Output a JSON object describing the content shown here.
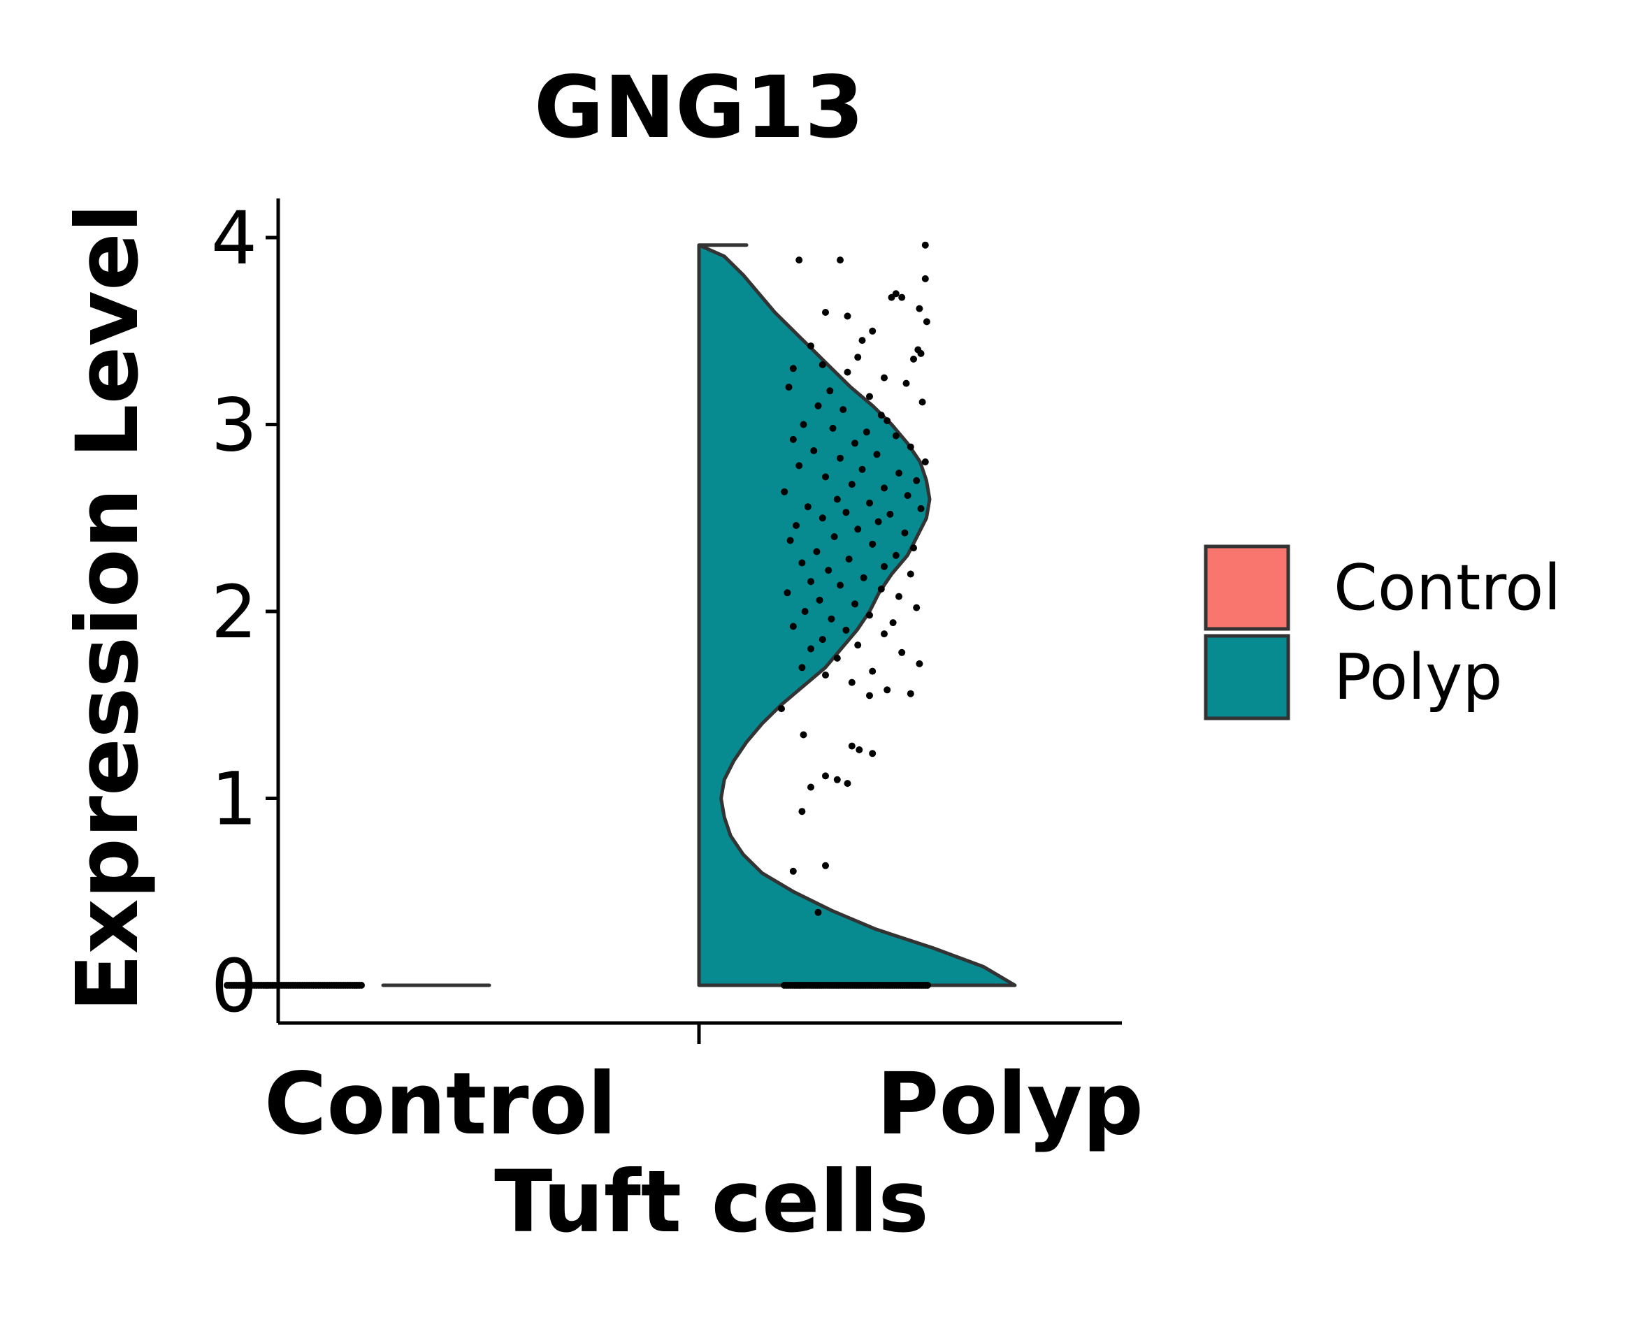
{
  "chart_data": {
    "type": "violin",
    "title": "GNG13",
    "xlabel": "Tuft cells",
    "ylabel": "Expression Level",
    "categories": [
      "Control",
      "Polyp"
    ],
    "yticks": [
      0,
      1,
      2,
      3,
      4
    ],
    "ylim": [
      -0.2,
      4.2
    ],
    "grid": false,
    "legend": {
      "position": "right",
      "entries": [
        {
          "label": "Control",
          "color": "#F8766D"
        },
        {
          "label": "Polyp",
          "color": "#088A91"
        }
      ]
    },
    "series": [
      {
        "group": "Control",
        "color": "#F8766D",
        "max_expression": 0,
        "zero_points": 60,
        "density_profile": []
      },
      {
        "group": "Polyp",
        "color": "#088A91",
        "max_expression": 3.96,
        "zero_points": 70,
        "density_profile": [
          [
            0.0,
            1.0
          ],
          [
            0.1,
            0.9
          ],
          [
            0.2,
            0.74
          ],
          [
            0.3,
            0.56
          ],
          [
            0.4,
            0.42
          ],
          [
            0.5,
            0.3
          ],
          [
            0.6,
            0.2
          ],
          [
            0.7,
            0.14
          ],
          [
            0.8,
            0.1
          ],
          [
            0.9,
            0.08
          ],
          [
            1.0,
            0.07
          ],
          [
            1.1,
            0.08
          ],
          [
            1.2,
            0.11
          ],
          [
            1.3,
            0.15
          ],
          [
            1.4,
            0.2
          ],
          [
            1.5,
            0.26
          ],
          [
            1.6,
            0.33
          ],
          [
            1.7,
            0.4
          ],
          [
            1.8,
            0.45
          ],
          [
            1.9,
            0.5
          ],
          [
            2.0,
            0.54
          ],
          [
            2.1,
            0.57
          ],
          [
            2.2,
            0.61
          ],
          [
            2.3,
            0.66
          ],
          [
            2.4,
            0.69
          ],
          [
            2.5,
            0.72
          ],
          [
            2.6,
            0.73
          ],
          [
            2.7,
            0.72
          ],
          [
            2.8,
            0.7
          ],
          [
            2.9,
            0.66
          ],
          [
            3.0,
            0.61
          ],
          [
            3.1,
            0.55
          ],
          [
            3.2,
            0.48
          ],
          [
            3.3,
            0.42
          ],
          [
            3.4,
            0.36
          ],
          [
            3.5,
            0.3
          ],
          [
            3.6,
            0.24
          ],
          [
            3.7,
            0.19
          ],
          [
            3.8,
            0.14
          ],
          [
            3.9,
            0.08
          ],
          [
            3.96,
            0.0
          ]
        ],
        "points": [
          [
            3.96,
            0.98
          ],
          [
            3.88,
            0.4
          ],
          [
            3.88,
            0.12
          ],
          [
            3.78,
            0.98
          ],
          [
            3.7,
            0.78
          ],
          [
            3.68,
            0.75
          ],
          [
            3.68,
            0.82
          ],
          [
            3.62,
            0.94
          ],
          [
            3.6,
            0.3
          ],
          [
            3.58,
            0.45
          ],
          [
            3.55,
            0.99
          ],
          [
            3.5,
            0.62
          ],
          [
            3.45,
            0.55
          ],
          [
            3.42,
            0.2
          ],
          [
            3.4,
            0.93
          ],
          [
            3.38,
            0.95
          ],
          [
            3.36,
            0.52
          ],
          [
            3.35,
            0.9
          ],
          [
            3.32,
            0.28
          ],
          [
            3.3,
            0.08
          ],
          [
            3.28,
            0.45
          ],
          [
            3.25,
            0.7
          ],
          [
            3.22,
            0.85
          ],
          [
            3.2,
            0.05
          ],
          [
            3.18,
            0.33
          ],
          [
            3.15,
            0.6
          ],
          [
            3.12,
            0.96
          ],
          [
            3.1,
            0.25
          ],
          [
            3.08,
            0.42
          ],
          [
            3.05,
            0.68
          ],
          [
            3.02,
            0.72
          ],
          [
            3.0,
            0.15
          ],
          [
            2.98,
            0.35
          ],
          [
            2.96,
            0.58
          ],
          [
            2.94,
            0.78
          ],
          [
            2.92,
            0.08
          ],
          [
            2.9,
            0.5
          ],
          [
            2.88,
            0.88
          ],
          [
            2.86,
            0.22
          ],
          [
            2.84,
            0.65
          ],
          [
            2.82,
            0.4
          ],
          [
            2.8,
            0.98
          ],
          [
            2.78,
            0.12
          ],
          [
            2.76,
            0.55
          ],
          [
            2.74,
            0.8
          ],
          [
            2.72,
            0.3
          ],
          [
            2.7,
            0.92
          ],
          [
            2.68,
            0.48
          ],
          [
            2.66,
            0.7
          ],
          [
            2.64,
            0.02
          ],
          [
            2.62,
            0.86
          ],
          [
            2.6,
            0.38
          ],
          [
            2.58,
            0.6
          ],
          [
            2.56,
            0.18
          ],
          [
            2.55,
            0.95
          ],
          [
            2.53,
            0.44
          ],
          [
            2.52,
            0.74
          ],
          [
            2.5,
            0.28
          ],
          [
            2.48,
            0.66
          ],
          [
            2.46,
            0.1
          ],
          [
            2.44,
            0.52
          ],
          [
            2.42,
            0.84
          ],
          [
            2.4,
            0.36
          ],
          [
            2.38,
            0.06
          ],
          [
            2.36,
            0.62
          ],
          [
            2.34,
            0.9
          ],
          [
            2.32,
            0.24
          ],
          [
            2.3,
            0.78
          ],
          [
            2.28,
            0.46
          ],
          [
            2.26,
            0.14
          ],
          [
            2.24,
            0.7
          ],
          [
            2.22,
            0.32
          ],
          [
            2.2,
            0.88
          ],
          [
            2.18,
            0.56
          ],
          [
            2.16,
            0.2
          ],
          [
            2.14,
            0.4
          ],
          [
            2.12,
            0.68
          ],
          [
            2.1,
            0.04
          ],
          [
            2.08,
            0.8
          ],
          [
            2.06,
            0.26
          ],
          [
            2.04,
            0.5
          ],
          [
            2.02,
            0.92
          ],
          [
            2.0,
            0.16
          ],
          [
            1.98,
            0.6
          ],
          [
            1.96,
            0.34
          ],
          [
            1.94,
            0.76
          ],
          [
            1.92,
            0.08
          ],
          [
            1.9,
            0.44
          ],
          [
            1.88,
            0.7
          ],
          [
            1.85,
            0.28
          ],
          [
            1.82,
            0.52
          ],
          [
            1.8,
            0.2
          ],
          [
            1.78,
            0.82
          ],
          [
            1.75,
            0.38
          ],
          [
            1.72,
            0.94
          ],
          [
            1.7,
            0.14
          ],
          [
            1.68,
            0.62
          ],
          [
            1.66,
            0.3
          ],
          [
            1.62,
            0.48
          ],
          [
            1.58,
            0.72
          ],
          [
            1.56,
            0.88
          ],
          [
            1.55,
            0.6
          ],
          [
            1.48,
            0.0
          ],
          [
            1.34,
            0.15
          ],
          [
            1.28,
            0.48
          ],
          [
            1.26,
            0.53
          ],
          [
            1.24,
            0.62
          ],
          [
            1.12,
            0.3
          ],
          [
            1.1,
            0.38
          ],
          [
            1.08,
            0.45
          ],
          [
            1.06,
            0.2
          ],
          [
            0.93,
            0.14
          ],
          [
            0.64,
            0.3
          ],
          [
            0.61,
            0.08
          ],
          [
            0.39,
            0.25
          ]
        ]
      }
    ]
  }
}
